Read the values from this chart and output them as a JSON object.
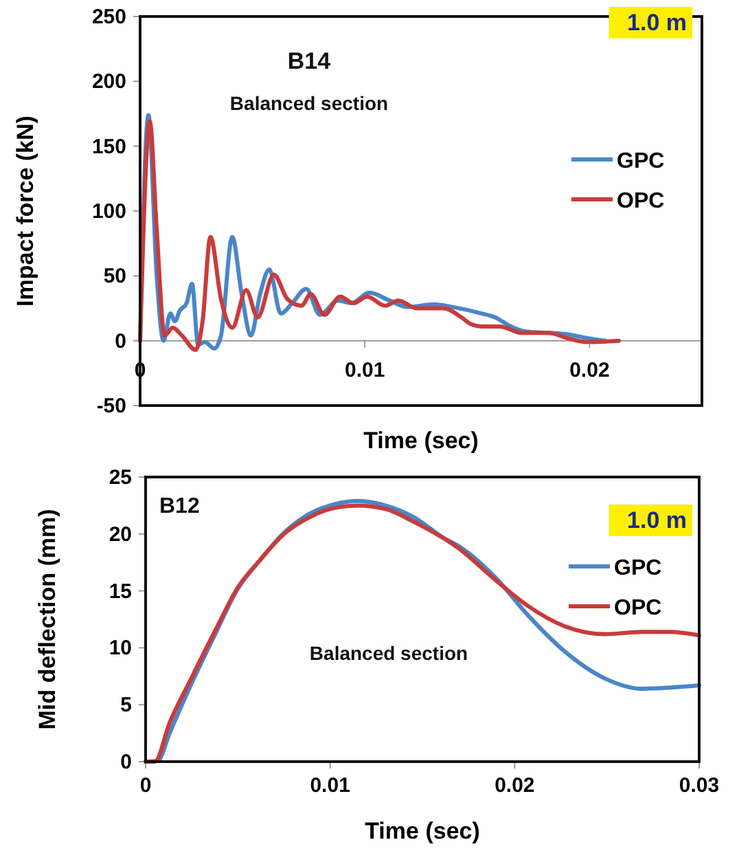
{
  "chart_data": [
    {
      "type": "line",
      "xlabel": "Time (sec)",
      "ylabel": "Impact force (kN)",
      "annotations": [
        "B14",
        "Balanced section",
        "1.0 m"
      ],
      "xlim": [
        0,
        0.025
      ],
      "ylim": [
        -50,
        250
      ],
      "xticks": [
        0,
        0.01,
        0.02
      ],
      "yticks": [
        -50,
        0,
        50,
        100,
        150,
        200,
        250
      ],
      "legend": "right",
      "series": [
        {
          "name": "GPC",
          "color": "#4a86c8",
          "x": [
            0,
            0.00037,
            0.00074,
            0.00104,
            0.00135,
            0.00155,
            0.00176,
            0.00207,
            0.00231,
            0.00258,
            0.00288,
            0.0033,
            0.0036,
            0.0041,
            0.00452,
            0.00493,
            0.00534,
            0.00575,
            0.00626,
            0.00677,
            0.00739,
            0.008,
            0.0088,
            0.0094,
            0.0102,
            0.0111,
            0.0119,
            0.0131,
            0.0139,
            0.0152,
            0.0158,
            0.0165,
            0.0172,
            0.0182,
            0.019,
            0.0199,
            0.0207
          ],
          "values": [
            0,
            174,
            50,
            0,
            21,
            15,
            23,
            29,
            44,
            -3,
            -1,
            -6,
            4,
            80,
            36,
            4,
            36,
            55,
            21,
            29,
            40,
            20,
            31,
            29,
            37,
            31,
            26,
            28,
            26,
            21,
            18,
            11,
            7,
            6,
            5,
            2,
            0
          ]
        },
        {
          "name": "OPC",
          "color": "#c83c3c",
          "x": [
            0,
            0.00043,
            0.00074,
            0.00109,
            0.00145,
            0.00186,
            0.00247,
            0.00278,
            0.00313,
            0.0036,
            0.0041,
            0.00472,
            0.00523,
            0.00595,
            0.00656,
            0.00718,
            0.00759,
            0.0082,
            0.0089,
            0.0095,
            0.0101,
            0.0109,
            0.0115,
            0.0123,
            0.0135,
            0.0143,
            0.0147,
            0.0152,
            0.016,
            0.017,
            0.0182,
            0.019,
            0.0199,
            0.0213
          ],
          "values": [
            0,
            169,
            85,
            4,
            10,
            4,
            -7,
            15,
            80,
            32,
            10,
            39,
            18,
            51,
            32,
            27,
            36,
            20,
            34,
            29,
            34,
            27,
            31,
            25,
            25,
            18,
            13,
            11,
            11,
            6,
            6,
            2,
            -1,
            0
          ]
        }
      ]
    },
    {
      "type": "line",
      "xlabel": "Time (sec)",
      "ylabel": "Mid deflection (mm)",
      "annotations": [
        "B12",
        "Balanced section",
        "1.0 m"
      ],
      "xlim": [
        0,
        0.03
      ],
      "ylim": [
        0,
        25
      ],
      "xticks": [
        0,
        0.01,
        0.02,
        0.03
      ],
      "yticks": [
        0,
        5,
        10,
        15,
        20,
        25
      ],
      "legend": "right",
      "series": [
        {
          "name": "GPC",
          "color": "#4a86c8",
          "x": [
            0,
            0.00067,
            0.0013,
            0.0025,
            0.0038,
            0.005,
            0.0062,
            0.0075,
            0.0088,
            0.01,
            0.0115,
            0.013,
            0.0145,
            0.0162,
            0.017,
            0.019,
            0.0207,
            0.0227,
            0.0249,
            0.0269,
            0.0284,
            0.03
          ],
          "values": [
            0,
            0.1,
            2.5,
            6.9,
            11.3,
            15.2,
            17.7,
            20.1,
            21.7,
            22.5,
            22.9,
            22.5,
            21.5,
            19.6,
            18.9,
            16.1,
            12.9,
            9.7,
            7.3,
            6.4,
            6.5,
            6.7
          ]
        },
        {
          "name": "OPC",
          "color": "#c83c3c",
          "x": [
            0,
            0.0005,
            0.0013,
            0.0025,
            0.0038,
            0.005,
            0.0062,
            0.0075,
            0.0088,
            0.01,
            0.0115,
            0.013,
            0.0145,
            0.017,
            0.019,
            0.0207,
            0.0227,
            0.0249,
            0.0269,
            0.0284,
            0.03
          ],
          "values": [
            0,
            0,
            3.4,
            7.4,
            11.6,
            15.3,
            17.7,
            20.0,
            21.4,
            22.2,
            22.5,
            22.2,
            21.1,
            18.7,
            15.9,
            13.7,
            11.9,
            11.2,
            11.4,
            11.4,
            11.1
          ]
        }
      ]
    }
  ]
}
